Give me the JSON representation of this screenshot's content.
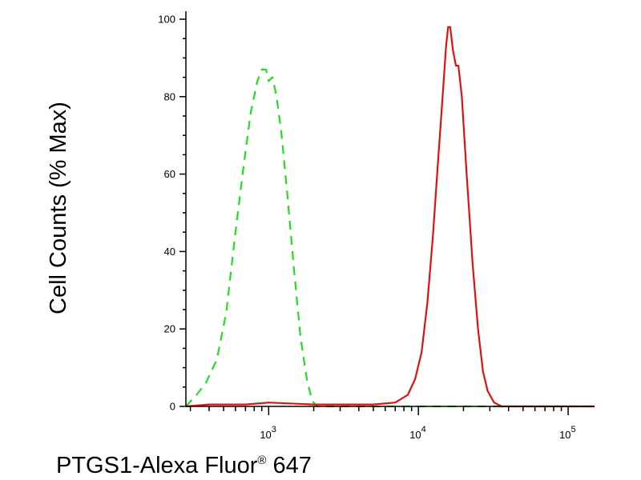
{
  "chart_data": {
    "type": "line",
    "title": "",
    "xlabel": "PTGS1-Alexa Fluor",
    "xlabel_superscript": "®",
    "xlabel_suffix": " 647",
    "ylabel": "Cell Counts (% Max)",
    "x_scale": "log",
    "xlim": [
      280,
      150000
    ],
    "ylim": [
      0,
      100
    ],
    "y_ticks": [
      0,
      20,
      40,
      60,
      80,
      100
    ],
    "y_tick_labels": [
      "0",
      "20",
      "40",
      "60",
      "80",
      "100"
    ],
    "x_ticks": [
      1000,
      10000,
      100000
    ],
    "x_tick_labels": [
      {
        "base": "10",
        "exp": "3"
      },
      {
        "base": "10",
        "exp": "4"
      },
      {
        "base": "10",
        "exp": "5"
      }
    ],
    "grid": false,
    "series": [
      {
        "color": "#22dd22",
        "dash": "dashed",
        "points": [
          [
            280,
            0
          ],
          [
            330,
            3
          ],
          [
            380,
            6
          ],
          [
            450,
            12
          ],
          [
            520,
            24
          ],
          [
            600,
            45
          ],
          [
            680,
            62
          ],
          [
            760,
            76
          ],
          [
            840,
            84
          ],
          [
            900,
            87
          ],
          [
            960,
            87
          ],
          [
            1000,
            84
          ],
          [
            1060,
            85
          ],
          [
            1130,
            80
          ],
          [
            1220,
            70
          ],
          [
            1330,
            55
          ],
          [
            1480,
            35
          ],
          [
            1630,
            18
          ],
          [
            1800,
            7
          ],
          [
            1950,
            1.5
          ],
          [
            2100,
            0
          ],
          [
            150000,
            0
          ]
        ]
      },
      {
        "color": "#dd1111",
        "dash": "solid",
        "points": [
          [
            280,
            0
          ],
          [
            400,
            0.5
          ],
          [
            700,
            0.5
          ],
          [
            1000,
            1
          ],
          [
            2000,
            0.5
          ],
          [
            5000,
            0.5
          ],
          [
            7000,
            1
          ],
          [
            8500,
            3
          ],
          [
            9500,
            7
          ],
          [
            10500,
            14
          ],
          [
            11500,
            27
          ],
          [
            12500,
            44
          ],
          [
            13500,
            63
          ],
          [
            14500,
            80
          ],
          [
            15300,
            93
          ],
          [
            15800,
            98
          ],
          [
            16300,
            98
          ],
          [
            17000,
            92
          ],
          [
            17800,
            88
          ],
          [
            18500,
            88
          ],
          [
            19500,
            80
          ],
          [
            21000,
            60
          ],
          [
            23000,
            37
          ],
          [
            25000,
            20
          ],
          [
            27000,
            9
          ],
          [
            29000,
            4
          ],
          [
            32000,
            1
          ],
          [
            36000,
            0
          ],
          [
            150000,
            0
          ]
        ]
      }
    ]
  }
}
